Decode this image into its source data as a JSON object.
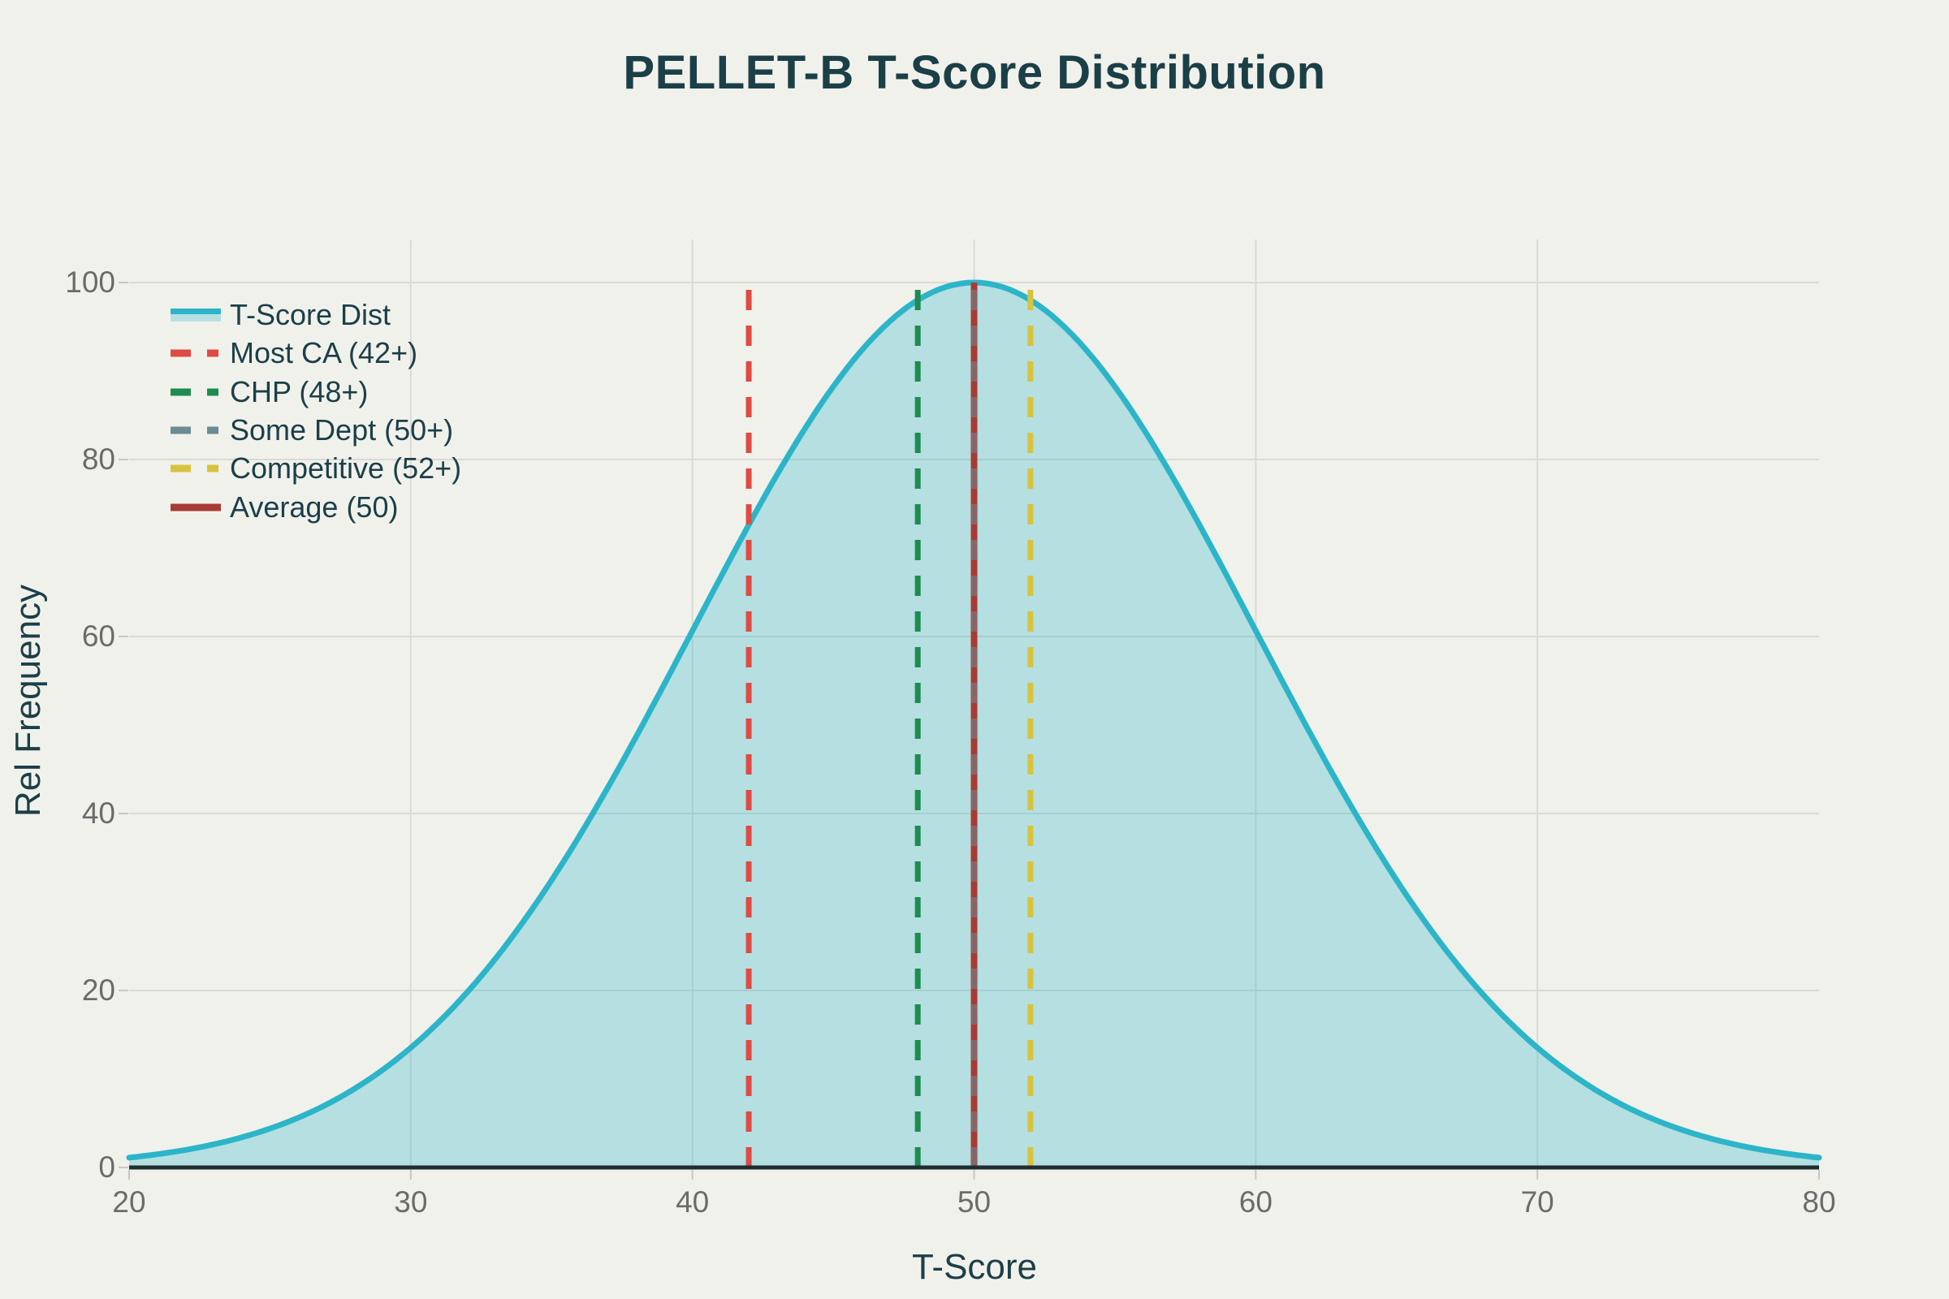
{
  "chart": {
    "title": "PELLET-B T-Score Distribution",
    "xlabel": "T-Score",
    "ylabel": "Rel Frequency"
  },
  "colors": {
    "background": "#f1f1ec",
    "title_text": "#1b3f47",
    "tick_text": "#6b6b6b",
    "gridline": "#dadad4",
    "tick_mark": "#c8c8c2",
    "axis_line": "#1e2d30",
    "curve_stroke": "#2cb5c8",
    "curve_fill": "rgba(44,181,200,0.30)",
    "curve_fill_legend": "#b7e0e4",
    "most_ca_red": "#df4a42",
    "chp_green": "#1e8b50",
    "some_dept_slate": "#6c8b95",
    "competitive_yellow": "#d8c33c",
    "average_dark_red": "#a93a34"
  },
  "chart_data": {
    "type": "area",
    "title": "PELLET-B T-Score Distribution",
    "xlabel": "T-Score",
    "ylabel": "Rel Frequency",
    "x_range": [
      20,
      80
    ],
    "y_range": [
      0,
      105
    ],
    "x_ticks": [
      20,
      30,
      40,
      50,
      60,
      70,
      80
    ],
    "y_ticks": [
      0,
      20,
      40,
      60,
      80,
      100
    ],
    "grid": true,
    "legend_position": "top-left",
    "series": [
      {
        "name": "T-Score Dist",
        "type": "area",
        "shape": "gaussian",
        "mean": 50,
        "sigma": 10,
        "peak": 100,
        "x_sample": [
          20,
          25,
          30,
          35,
          40,
          45,
          50,
          55,
          60,
          65,
          70,
          75,
          80
        ],
        "y_sample": [
          1.1,
          4.4,
          13.5,
          32.5,
          60.7,
          88.2,
          100,
          88.2,
          60.7,
          32.5,
          13.5,
          4.4,
          1.1
        ],
        "stroke": "#2cb5c8",
        "fill": "rgba(44,181,200,0.30)",
        "legend_fill": "#b7e0e4"
      }
    ],
    "vlines": [
      {
        "name": "Most CA (42+)",
        "x": 42,
        "style": "dashed",
        "color": "#df4a42",
        "z": 1,
        "opacity": 1
      },
      {
        "name": "CHP (48+)",
        "x": 48,
        "style": "dashed",
        "color": "#1e8b50",
        "z": 2,
        "opacity": 1
      },
      {
        "name": "Some Dept (50+)",
        "x": 50,
        "style": "dashed",
        "color": "#6c8b95",
        "z": 5,
        "opacity": 0.55
      },
      {
        "name": "Competitive (52+)",
        "x": 52,
        "style": "dashed",
        "color": "#d8c33c",
        "z": 3,
        "opacity": 1
      },
      {
        "name": "Average (50)",
        "x": 50,
        "style": "solid",
        "color": "#a93a34",
        "z": 4,
        "opacity": 1
      }
    ]
  }
}
